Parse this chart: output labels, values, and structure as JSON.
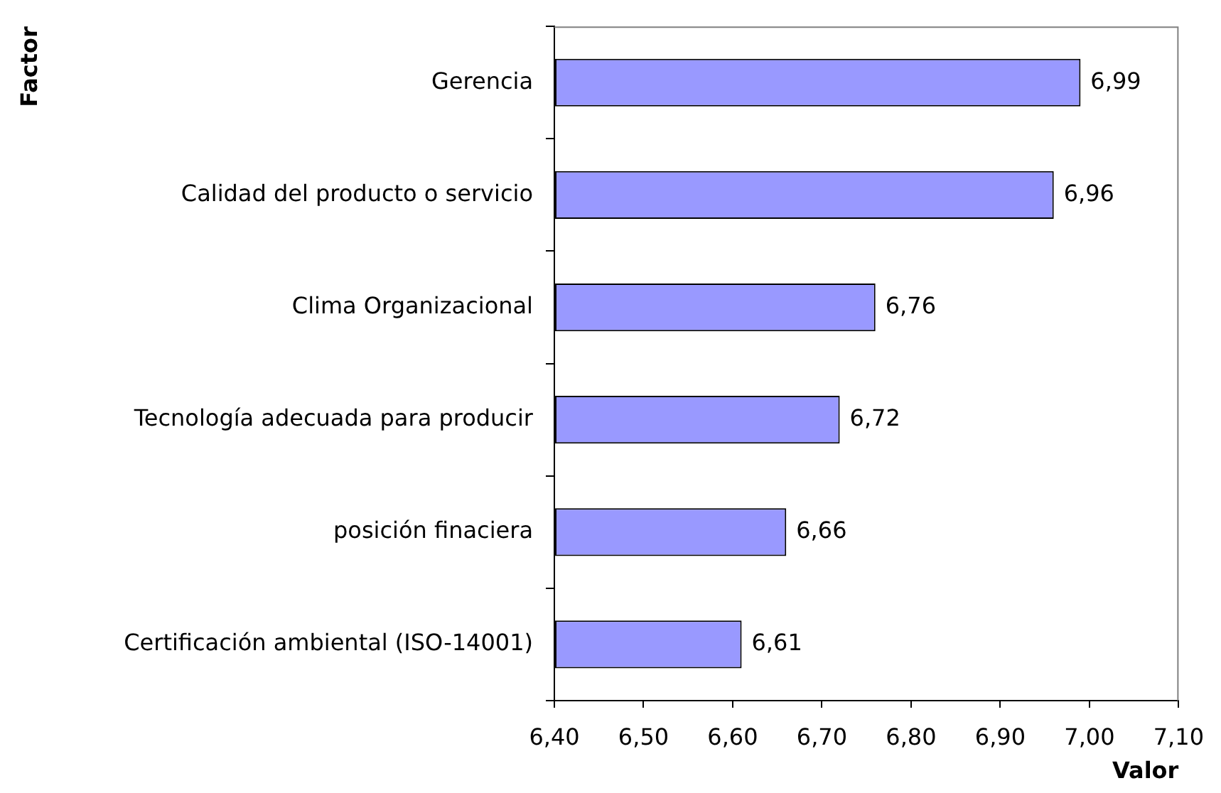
{
  "chart_data": {
    "type": "bar",
    "orientation": "horizontal",
    "xlabel": "Valor",
    "ylabel": "Factor",
    "categories": [
      "Gerencia",
      "Calidad del producto o servicio",
      "Clima Organizacional",
      "Tecnología adecuada para producir",
      "posición finaciera",
      "Certificación ambiental (ISO-14001)"
    ],
    "values": [
      6.99,
      6.96,
      6.76,
      6.72,
      6.66,
      6.61
    ],
    "color": "#9999ff",
    "value_labels": [
      "6,99",
      "6,96",
      "6,76",
      "6,72",
      "6,66",
      "6,61"
    ],
    "xlim": [
      6.4,
      7.1
    ],
    "xticks": [
      {
        "value": 6.4,
        "label": "6,40"
      },
      {
        "value": 6.5,
        "label": "6,50"
      },
      {
        "value": 6.6,
        "label": "6,60"
      },
      {
        "value": 6.7,
        "label": "6,70"
      },
      {
        "value": 6.8,
        "label": "6,80"
      },
      {
        "value": 6.9,
        "label": "6,90"
      },
      {
        "value": 7.0,
        "label": "7,00"
      },
      {
        "value": 7.1,
        "label": "7,10"
      }
    ]
  }
}
